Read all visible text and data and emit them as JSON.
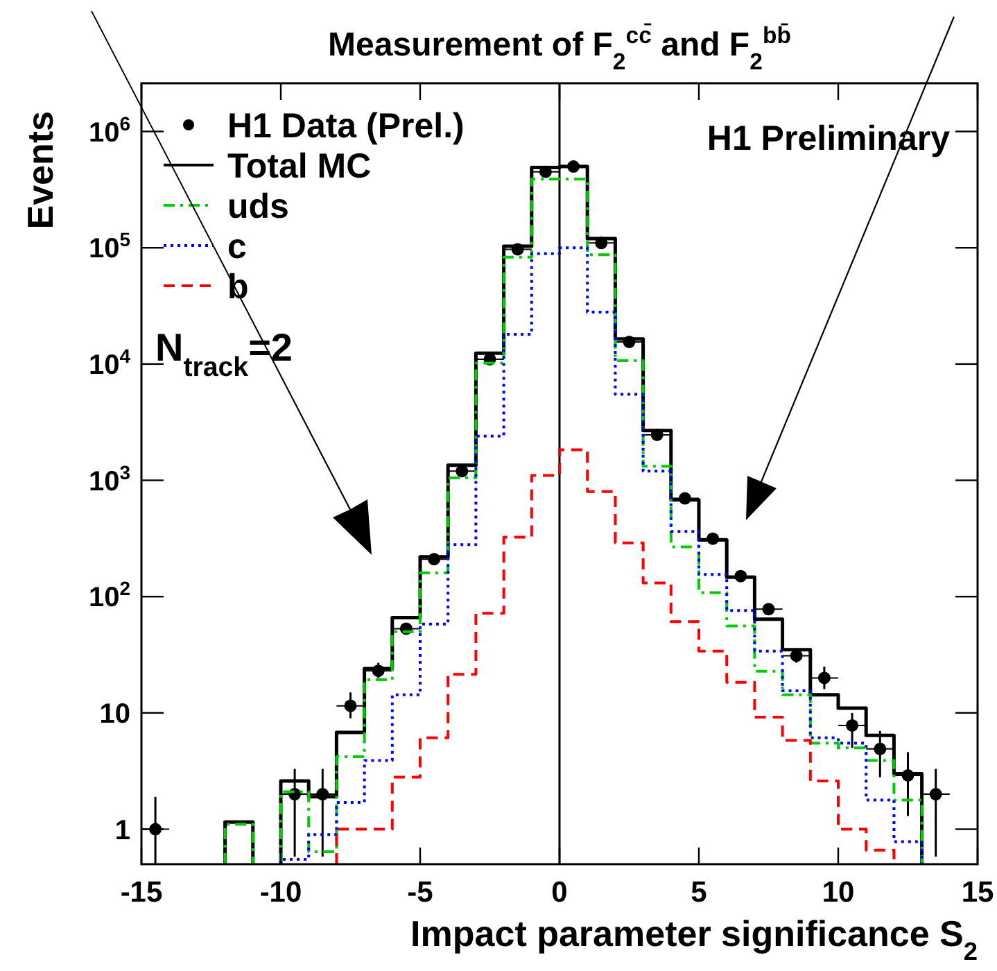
{
  "chart_data": {
    "type": "histogram",
    "title": "Measurement of F$_{2}$$^{cc̄}$ and F$_{2}$$^{bb̄}$",
    "xlabel": "Impact parameter significance S$_{2}$",
    "ylabel": "Events",
    "annotations": [
      "H1 Preliminary",
      "N$_{track}$=2"
    ],
    "series": [
      {
        "name": "H1 Data (Prel.)",
        "type": "scatter",
        "color": "#000000",
        "marker": "circle",
        "x": [
          -14.5,
          -9.5,
          -8.5,
          -7.5,
          -6.5,
          -5.5,
          -4.5,
          -3.5,
          -2.5,
          -1.5,
          -0.5,
          0.5,
          1.5,
          2.5,
          3.5,
          4.5,
          5.5,
          6.5,
          7.5,
          8.5,
          9.5,
          10.5,
          11.5,
          12.5,
          13.5
        ],
        "values": [
          1,
          2,
          2,
          11.5,
          23,
          53,
          210,
          1200,
          11000,
          97000,
          450000,
          500000,
          110000,
          15500,
          2460,
          700,
          315,
          150,
          78,
          31,
          20,
          7.8,
          4.9,
          2.9,
          2
        ],
        "xerrors": [
          0.5,
          0.5,
          0.5,
          0.5,
          0.5,
          0.5,
          0.5,
          0.5,
          0.5,
          0.5,
          0.5,
          0.5,
          0.5,
          0.5,
          0.5,
          0.5,
          0.5,
          0.5,
          0.5,
          0.5,
          0.5,
          0.5,
          0.5,
          0.5,
          0.5
        ],
        "errors": [
          [
            0.5,
            1.9
          ],
          [
            0.58,
            3.3
          ],
          [
            0.58,
            3.3
          ],
          [
            9,
            15
          ],
          [
            20,
            27
          ],
          null,
          null,
          null,
          null,
          null,
          null,
          null,
          null,
          null,
          null,
          null,
          null,
          null,
          null,
          [
            27,
            35
          ],
          [
            16,
            25
          ],
          [
            5,
            10
          ],
          [
            2.8,
            7
          ],
          [
            1.3,
            4.6
          ],
          [
            0.58,
            3.3
          ]
        ]
      },
      {
        "name": "Total MC",
        "color": "#000000",
        "line_style": "solid",
        "bins": [
          -12,
          -11,
          -10,
          -9,
          -8,
          -7,
          -6,
          -5,
          -4,
          -3,
          -2,
          -1,
          0,
          1,
          2,
          3,
          4,
          5,
          6,
          7,
          8,
          9,
          10,
          11,
          12,
          13
        ],
        "values": [
          1.15,
          null,
          2.6,
          1.9,
          6.8,
          24,
          66,
          220,
          1350,
          12400,
          103000,
          490000,
          500000,
          120000,
          16400,
          2680,
          680,
          307,
          147,
          64,
          35,
          14.3,
          11,
          6.4,
          3
        ]
      },
      {
        "name": "uds",
        "color": "#00cc00",
        "line_style": "dashdot",
        "bins": [
          -12,
          -11,
          -10,
          -9,
          -8,
          -7,
          -6,
          -5,
          -4,
          -3,
          -2,
          -1,
          0,
          1,
          2,
          3,
          4,
          5,
          6,
          7,
          8,
          9,
          10,
          11,
          12,
          13
        ],
        "values": [
          1.1,
          null,
          2.1,
          0.64,
          4.2,
          19.3,
          50,
          160,
          1050,
          10200,
          83000,
          390000,
          390000,
          87000,
          10700,
          1320,
          268,
          108,
          56,
          22.8,
          14.3,
          5.5,
          5,
          3.9,
          1.78
        ]
      },
      {
        "name": "c",
        "color": "#0000ff",
        "line_style": "dotted",
        "bins": [
          -10,
          -9,
          -8,
          -7,
          -6,
          -5,
          -4,
          -3,
          -2,
          -1,
          0,
          1,
          2,
          3,
          4,
          5,
          6,
          7,
          8,
          9,
          10,
          11,
          12,
          13
        ],
        "values": [
          0.55,
          0.9,
          1.7,
          3.9,
          14.3,
          58,
          280,
          2400,
          18000,
          89000,
          100000,
          28000,
          5500,
          1200,
          364,
          155,
          76,
          34,
          15.5,
          6.1,
          5.5,
          1.78,
          0.78
        ]
      },
      {
        "name": "b",
        "color": "#ff0000",
        "line_style": "dashed",
        "bins": [
          -8,
          -7,
          -6,
          -5,
          -4,
          -3,
          -2,
          -1,
          0,
          1,
          2,
          3,
          4,
          5,
          6,
          7,
          8,
          9,
          10,
          11,
          12
        ],
        "values": [
          1,
          1,
          2.8,
          6.1,
          21.5,
          72,
          325,
          1100,
          1830,
          800,
          290,
          131,
          61,
          34,
          18.3,
          9.2,
          5.8,
          2.6,
          1,
          0.66
        ]
      }
    ],
    "xlim": [
      -15,
      15
    ],
    "xticks": [
      -15,
      -10,
      -5,
      0,
      5,
      10,
      15
    ],
    "ylim": [
      0.5,
      2600000
    ],
    "log": "y",
    "yticks": [
      1,
      10,
      {
        "value": 100,
        "label": "10$^{2}$"
      },
      {
        "value": 1000,
        "label": "10$^{3}$"
      },
      {
        "value": 10000,
        "label": "10$^{4}$"
      },
      {
        "value": 100000,
        "label": "10$^{5}$"
      },
      {
        "value": 1000000,
        "label": "10$^{6}$"
      }
    ],
    "ref_lines": [
      {
        "axis": "x",
        "value": 0,
        "color": "#000000",
        "line_style": "solid"
      }
    ],
    "grid": false,
    "legend": "top left"
  }
}
